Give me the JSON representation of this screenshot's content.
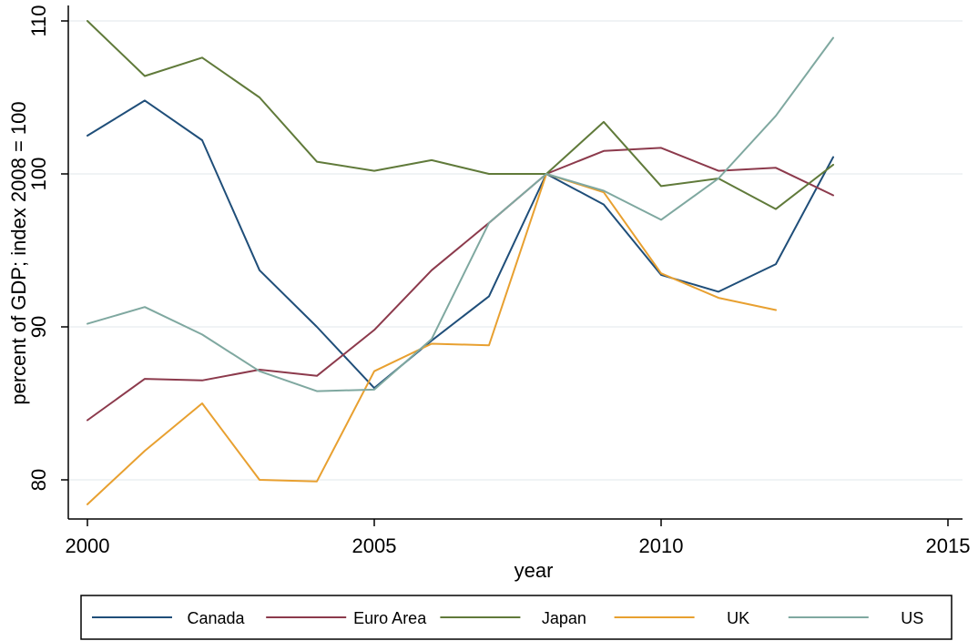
{
  "chart_data": {
    "type": "line",
    "title": "",
    "xlabel": "year",
    "ylabel": "percent of GDP; index 2008 = 100",
    "xlim": [
      2000,
      2015
    ],
    "ylim": [
      80,
      110
    ],
    "x_ticks": [
      2000,
      2005,
      2010,
      2015
    ],
    "y_ticks": [
      80,
      90,
      100,
      110
    ],
    "grid": "horizontal",
    "legend_position": "bottom",
    "x": [
      2000,
      2001,
      2002,
      2003,
      2004,
      2005,
      2006,
      2007,
      2008,
      2009,
      2010,
      2011,
      2012,
      2013
    ],
    "series": [
      {
        "name": "Canada",
        "color": "#1f4e79",
        "values": [
          102.5,
          104.8,
          102.2,
          93.7,
          90.0,
          86.0,
          89.1,
          92.0,
          100.0,
          98.0,
          93.4,
          92.3,
          94.1,
          101.1
        ]
      },
      {
        "name": "Euro Area",
        "color": "#8c3a4c",
        "values": [
          83.9,
          86.6,
          86.5,
          87.2,
          86.8,
          89.8,
          93.7,
          96.8,
          100.0,
          101.5,
          101.7,
          100.2,
          100.4,
          98.6
        ]
      },
      {
        "name": "Japan",
        "color": "#607a3a",
        "values": [
          110.0,
          106.4,
          107.6,
          105.0,
          100.8,
          100.2,
          100.9,
          100.0,
          100.0,
          103.4,
          99.2,
          99.7,
          97.7,
          100.6
        ]
      },
      {
        "name": "UK",
        "color": "#e8a030",
        "values": [
          78.4,
          81.9,
          85.0,
          80.0,
          79.9,
          87.1,
          88.9,
          88.8,
          100.0,
          98.8,
          93.5,
          91.9,
          91.1,
          null
        ]
      },
      {
        "name": "US",
        "color": "#7fa8a0",
        "values": [
          90.2,
          91.3,
          89.5,
          87.1,
          85.8,
          85.9,
          89.2,
          96.8,
          100.0,
          98.9,
          97.0,
          99.7,
          103.8,
          108.9
        ]
      }
    ]
  }
}
